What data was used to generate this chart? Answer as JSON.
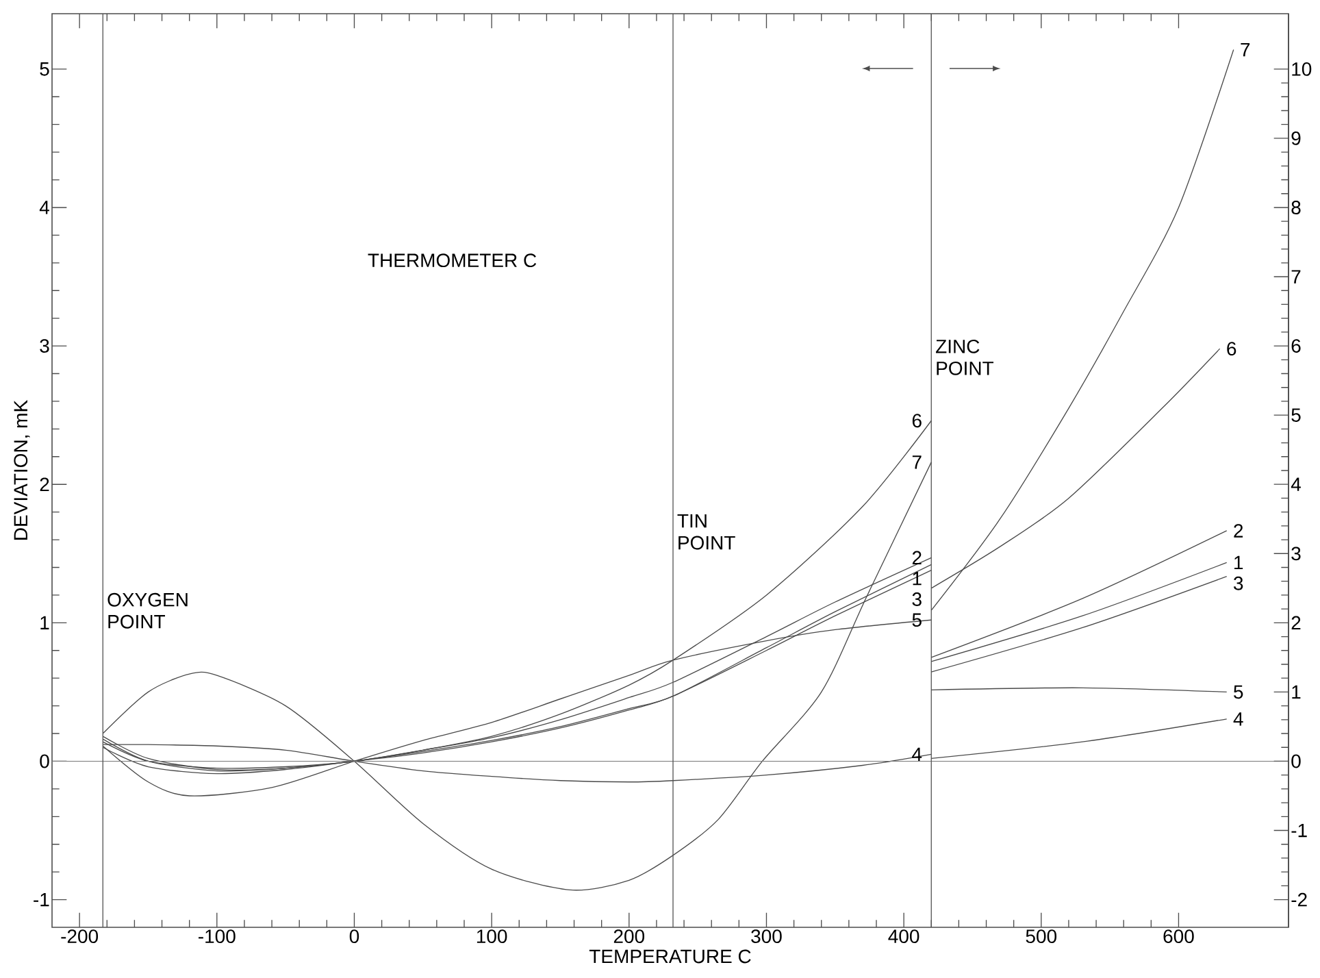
{
  "chart_data": {
    "type": "line",
    "xlabel": "TEMPERATURE C",
    "ylabel": "DEVIATION, mK",
    "annotations": [
      "THERMOMETER C"
    ],
    "xlim": [
      -220,
      680
    ],
    "ylim": [
      -1.2,
      5.4
    ],
    "y2lim": [
      -2.4,
      10.8
    ],
    "xticks": [
      -200,
      -100,
      0,
      100,
      200,
      300,
      400,
      500,
      600
    ],
    "yticks": [
      -1,
      0,
      1,
      2,
      3,
      4,
      5
    ],
    "y2ticks": [
      -2,
      -1,
      0,
      1,
      2,
      3,
      4,
      5,
      6,
      7,
      8,
      9,
      10
    ],
    "ref_lines": [
      {
        "axis": "y",
        "value": 0,
        "color": "#777777"
      },
      {
        "axis": "x",
        "value": -183,
        "label": "OXYGEN POINT",
        "color": "#555555"
      },
      {
        "axis": "x",
        "value": 232,
        "label": "TIN POINT",
        "color": "#555555"
      },
      {
        "axis": "x",
        "value": 420,
        "label": "ZINC POINT",
        "color": "#555555"
      }
    ],
    "series": [
      {
        "name": "1",
        "color": "#4a4a4a",
        "x": [
          -183,
          -150,
          -100,
          -50,
          0,
          50,
          100,
          150,
          200,
          232,
          300,
          350,
          420
        ],
        "values": [
          0.1,
          -0.04,
          -0.09,
          -0.06,
          0,
          0.07,
          0.15,
          0.25,
          0.38,
          0.47,
          0.82,
          1.08,
          1.42
        ]
      },
      {
        "name": "2",
        "color": "#4a4a4a",
        "x": [
          -183,
          -150,
          -100,
          -50,
          0,
          50,
          100,
          150,
          200,
          232,
          300,
          350,
          420
        ],
        "values": [
          0.14,
          0,
          -0.05,
          -0.04,
          0,
          0.08,
          0.17,
          0.3,
          0.46,
          0.57,
          0.9,
          1.15,
          1.47
        ]
      },
      {
        "name": "3",
        "color": "#4a4a4a",
        "x": [
          -183,
          -150,
          -100,
          -50,
          0,
          50,
          100,
          150,
          200,
          232,
          300,
          350,
          420
        ],
        "values": [
          0.18,
          0.02,
          -0.06,
          -0.05,
          0,
          0.06,
          0.14,
          0.24,
          0.37,
          0.47,
          0.8,
          1.05,
          1.38
        ]
      },
      {
        "name": "4",
        "color": "#4a4a4a",
        "x": [
          -183,
          -150,
          -100,
          -50,
          0,
          50,
          100,
          150,
          200,
          232,
          300,
          370,
          420
        ],
        "values": [
          0.12,
          0.12,
          0.11,
          0.08,
          0,
          -0.07,
          -0.11,
          -0.14,
          -0.15,
          -0.14,
          -0.1,
          -0.03,
          0.05
        ]
      },
      {
        "name": "5",
        "color": "#4a4a4a",
        "x": [
          -183,
          -150,
          -120,
          -60,
          0,
          50,
          100,
          150,
          200,
          232,
          300,
          350,
          420
        ],
        "values": [
          0.11,
          -0.15,
          -0.25,
          -0.19,
          0,
          0.15,
          0.28,
          0.45,
          0.62,
          0.73,
          0.87,
          0.95,
          1.02
        ]
      },
      {
        "name": "6",
        "color": "#4a4a4a",
        "x": [
          -183,
          -150,
          -100,
          -50,
          0,
          50,
          100,
          150,
          200,
          232,
          300,
          370,
          420
        ],
        "values": [
          0.16,
          0,
          -0.07,
          -0.05,
          0,
          0.08,
          0.18,
          0.34,
          0.55,
          0.73,
          1.2,
          1.84,
          2.46
        ]
      },
      {
        "name": "7",
        "color": "#4a4a4a",
        "x": [
          -183,
          -150,
          -120,
          -100,
          -50,
          0,
          50,
          100,
          157,
          200,
          232,
          265,
          297,
          340,
          373,
          420
        ],
        "values": [
          0.2,
          0.5,
          0.63,
          0.62,
          0.4,
          0,
          -0.45,
          -0.78,
          -0.93,
          -0.86,
          -0.68,
          -0.42,
          0,
          0.5,
          1.19,
          2.16
        ]
      },
      {
        "name": "1",
        "color": "#4a4a4a",
        "axis": "y2",
        "x": [
          420,
          530,
          635
        ],
        "values": [
          1.44,
          2.1,
          2.87
        ]
      },
      {
        "name": "2",
        "color": "#4a4a4a",
        "axis": "y2",
        "x": [
          420,
          530,
          635
        ],
        "values": [
          1.5,
          2.35,
          3.33
        ]
      },
      {
        "name": "3",
        "color": "#4a4a4a",
        "axis": "y2",
        "x": [
          420,
          530,
          635
        ],
        "values": [
          1.29,
          1.93,
          2.67
        ]
      },
      {
        "name": "4",
        "color": "#4a4a4a",
        "axis": "y2",
        "x": [
          420,
          530,
          635
        ],
        "values": [
          0.04,
          0.28,
          0.61
        ]
      },
      {
        "name": "5",
        "color": "#4a4a4a",
        "axis": "y2",
        "x": [
          420,
          530,
          635
        ],
        "values": [
          1.03,
          1.06,
          1.0
        ]
      },
      {
        "name": "6",
        "color": "#4a4a4a",
        "axis": "y2",
        "x": [
          420,
          470,
          520,
          588,
          630
        ],
        "values": [
          2.5,
          3.1,
          3.8,
          5.1,
          5.96
        ]
      },
      {
        "name": "7",
        "color": "#4a4a4a",
        "axis": "y2",
        "x": [
          420,
          470,
          520,
          560,
          600,
          640
        ],
        "values": [
          2.18,
          3.5,
          5.1,
          6.5,
          8.0,
          10.28
        ]
      }
    ]
  }
}
